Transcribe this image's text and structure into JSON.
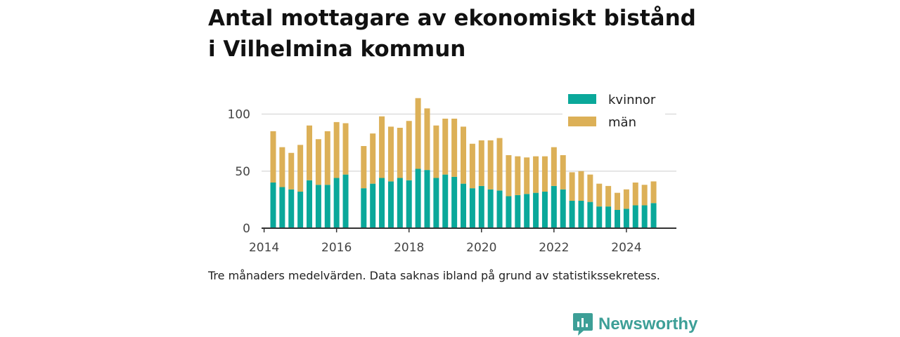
{
  "title_lines": [
    "Antal mottagare av ekonomiskt bistånd",
    "i Vilhelmina kommun"
  ],
  "caption": "Tre månaders medelvärden. Data saknas ibland på grund av statistikssekretess.",
  "brand": {
    "name": "Newsworthy",
    "icon": "newsworthy-chart-logo-icon",
    "color": "#3d9f97"
  },
  "colors": {
    "kvinnor": "#0aa89a",
    "man": "#dcb057",
    "grid": "#dddddd",
    "axis": "#333333"
  },
  "chart_data": {
    "type": "bar",
    "stacked": true,
    "title": "Antal mottagare av ekonomiskt bistånd i Vilhelmina kommun",
    "xlabel": "",
    "ylabel": "",
    "ylim": [
      0,
      120
    ],
    "xlim": [
      2013.93,
      2025.38
    ],
    "yticks": [
      0,
      50,
      100
    ],
    "xticks": [
      2014,
      2016,
      2018,
      2020,
      2022,
      2024
    ],
    "grid": true,
    "legend_position": "top-right",
    "x": [
      2014.25,
      2014.5,
      2014.75,
      2015.0,
      2015.25,
      2015.5,
      2015.75,
      2016.0,
      2016.25,
      2016.5,
      2016.75,
      2017.0,
      2017.25,
      2017.5,
      2017.75,
      2018.0,
      2018.25,
      2018.5,
      2018.75,
      2019.0,
      2019.25,
      2019.5,
      2019.75,
      2020.0,
      2020.25,
      2020.5,
      2020.75,
      2021.0,
      2021.25,
      2021.5,
      2021.75,
      2022.0,
      2022.25,
      2022.5,
      2022.75,
      2023.0,
      2023.25,
      2023.5,
      2023.75,
      2024.0,
      2024.25,
      2024.5,
      2024.75
    ],
    "series": [
      {
        "name": "kvinnor",
        "values": [
          40,
          36,
          34,
          32,
          42,
          38,
          38,
          44,
          47,
          null,
          35,
          39,
          44,
          41,
          44,
          42,
          52,
          51,
          44,
          47,
          45,
          39,
          35,
          37,
          34,
          33,
          28,
          29,
          30,
          31,
          32,
          37,
          34,
          24,
          24,
          23,
          19,
          19,
          16,
          17,
          20,
          20,
          22
        ]
      },
      {
        "name": "män",
        "values": [
          45,
          35,
          32,
          41,
          48,
          40,
          47,
          49,
          45,
          null,
          37,
          44,
          54,
          48,
          44,
          52,
          62,
          54,
          46,
          49,
          51,
          50,
          39,
          40,
          43,
          46,
          36,
          34,
          32,
          32,
          31,
          34,
          30,
          25,
          26,
          24,
          20,
          18,
          15,
          17,
          20,
          18,
          19
        ]
      }
    ]
  }
}
